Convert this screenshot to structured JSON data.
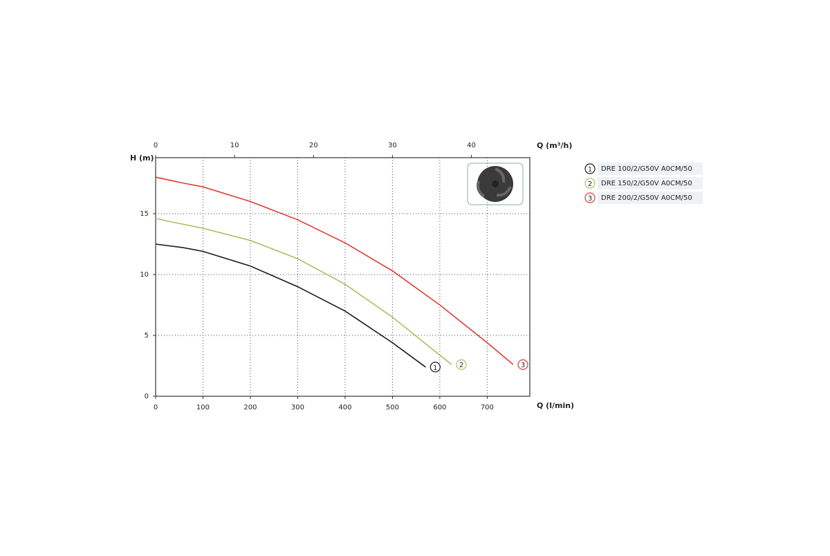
{
  "chart_data": {
    "type": "line",
    "y_label": "H (m)",
    "x_label": "Q (l/min)",
    "x2_label": "Q (m³/h)",
    "xlim": [
      0,
      790
    ],
    "xticks": [
      0,
      100,
      200,
      300,
      400,
      500,
      600,
      700
    ],
    "x2lim": [
      0,
      47.4
    ],
    "x2ticks": [
      0,
      10,
      20,
      30,
      40
    ],
    "ylim": [
      0,
      19.6
    ],
    "yticks": [
      0,
      5,
      10,
      15
    ],
    "grid": true,
    "series": [
      {
        "name": "DRE 100/2/G50V A0CM/50",
        "label": "1",
        "color": "#1a1a1a",
        "x": [
          0,
          60,
          100,
          200,
          300,
          400,
          500,
          570
        ],
        "values": [
          12.5,
          12.2,
          11.9,
          10.7,
          9.0,
          7.0,
          4.4,
          2.4
        ]
      },
      {
        "name": "DRE 150/2/G50V A0CM/50",
        "label": "2",
        "color": "#a8c060",
        "x": [
          0,
          50,
          100,
          200,
          300,
          400,
          500,
          625
        ],
        "values": [
          14.6,
          14.2,
          13.8,
          12.8,
          11.3,
          9.2,
          6.5,
          2.6
        ]
      },
      {
        "name": "DRE 200/2/G50V A0CM/50",
        "label": "3",
        "color": "#e03a32",
        "x": [
          0,
          60,
          100,
          200,
          300,
          400,
          500,
          600,
          700,
          755
        ],
        "values": [
          18.0,
          17.5,
          17.2,
          16.0,
          14.5,
          12.6,
          10.3,
          7.5,
          4.4,
          2.6
        ]
      }
    ]
  }
}
